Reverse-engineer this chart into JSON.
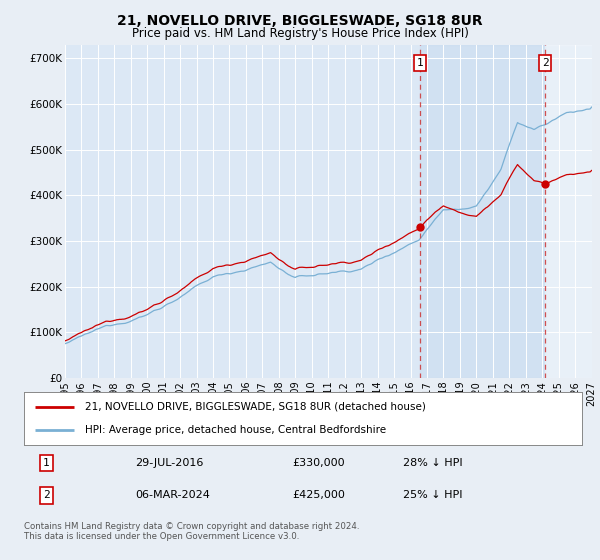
{
  "title": "21, NOVELLO DRIVE, BIGGLESWADE, SG18 8UR",
  "subtitle": "Price paid vs. HM Land Registry's House Price Index (HPI)",
  "bg_color": "#e8eef5",
  "plot_bg_color": "#dce8f5",
  "sale1_price": 330000,
  "sale1_label": "29-JUL-2016",
  "sale1_year": 2016.573,
  "sale1_pct": "28% ↓ HPI",
  "sale2_price": 425000,
  "sale2_label": "06-MAR-2024",
  "sale2_year": 2024.178,
  "sale2_pct": "25% ↓ HPI",
  "legend_property": "21, NOVELLO DRIVE, BIGGLESWADE, SG18 8UR (detached house)",
  "legend_hpi": "HPI: Average price, detached house, Central Bedfordshire",
  "footer": "Contains HM Land Registry data © Crown copyright and database right 2024.\nThis data is licensed under the Open Government Licence v3.0.",
  "property_color": "#cc0000",
  "hpi_color": "#7ab0d4",
  "vline_color": "#cc3333",
  "ytick_vals": [
    0,
    100000,
    200000,
    300000,
    400000,
    500000,
    600000,
    700000
  ],
  "xstart": 1995,
  "xend": 2027
}
